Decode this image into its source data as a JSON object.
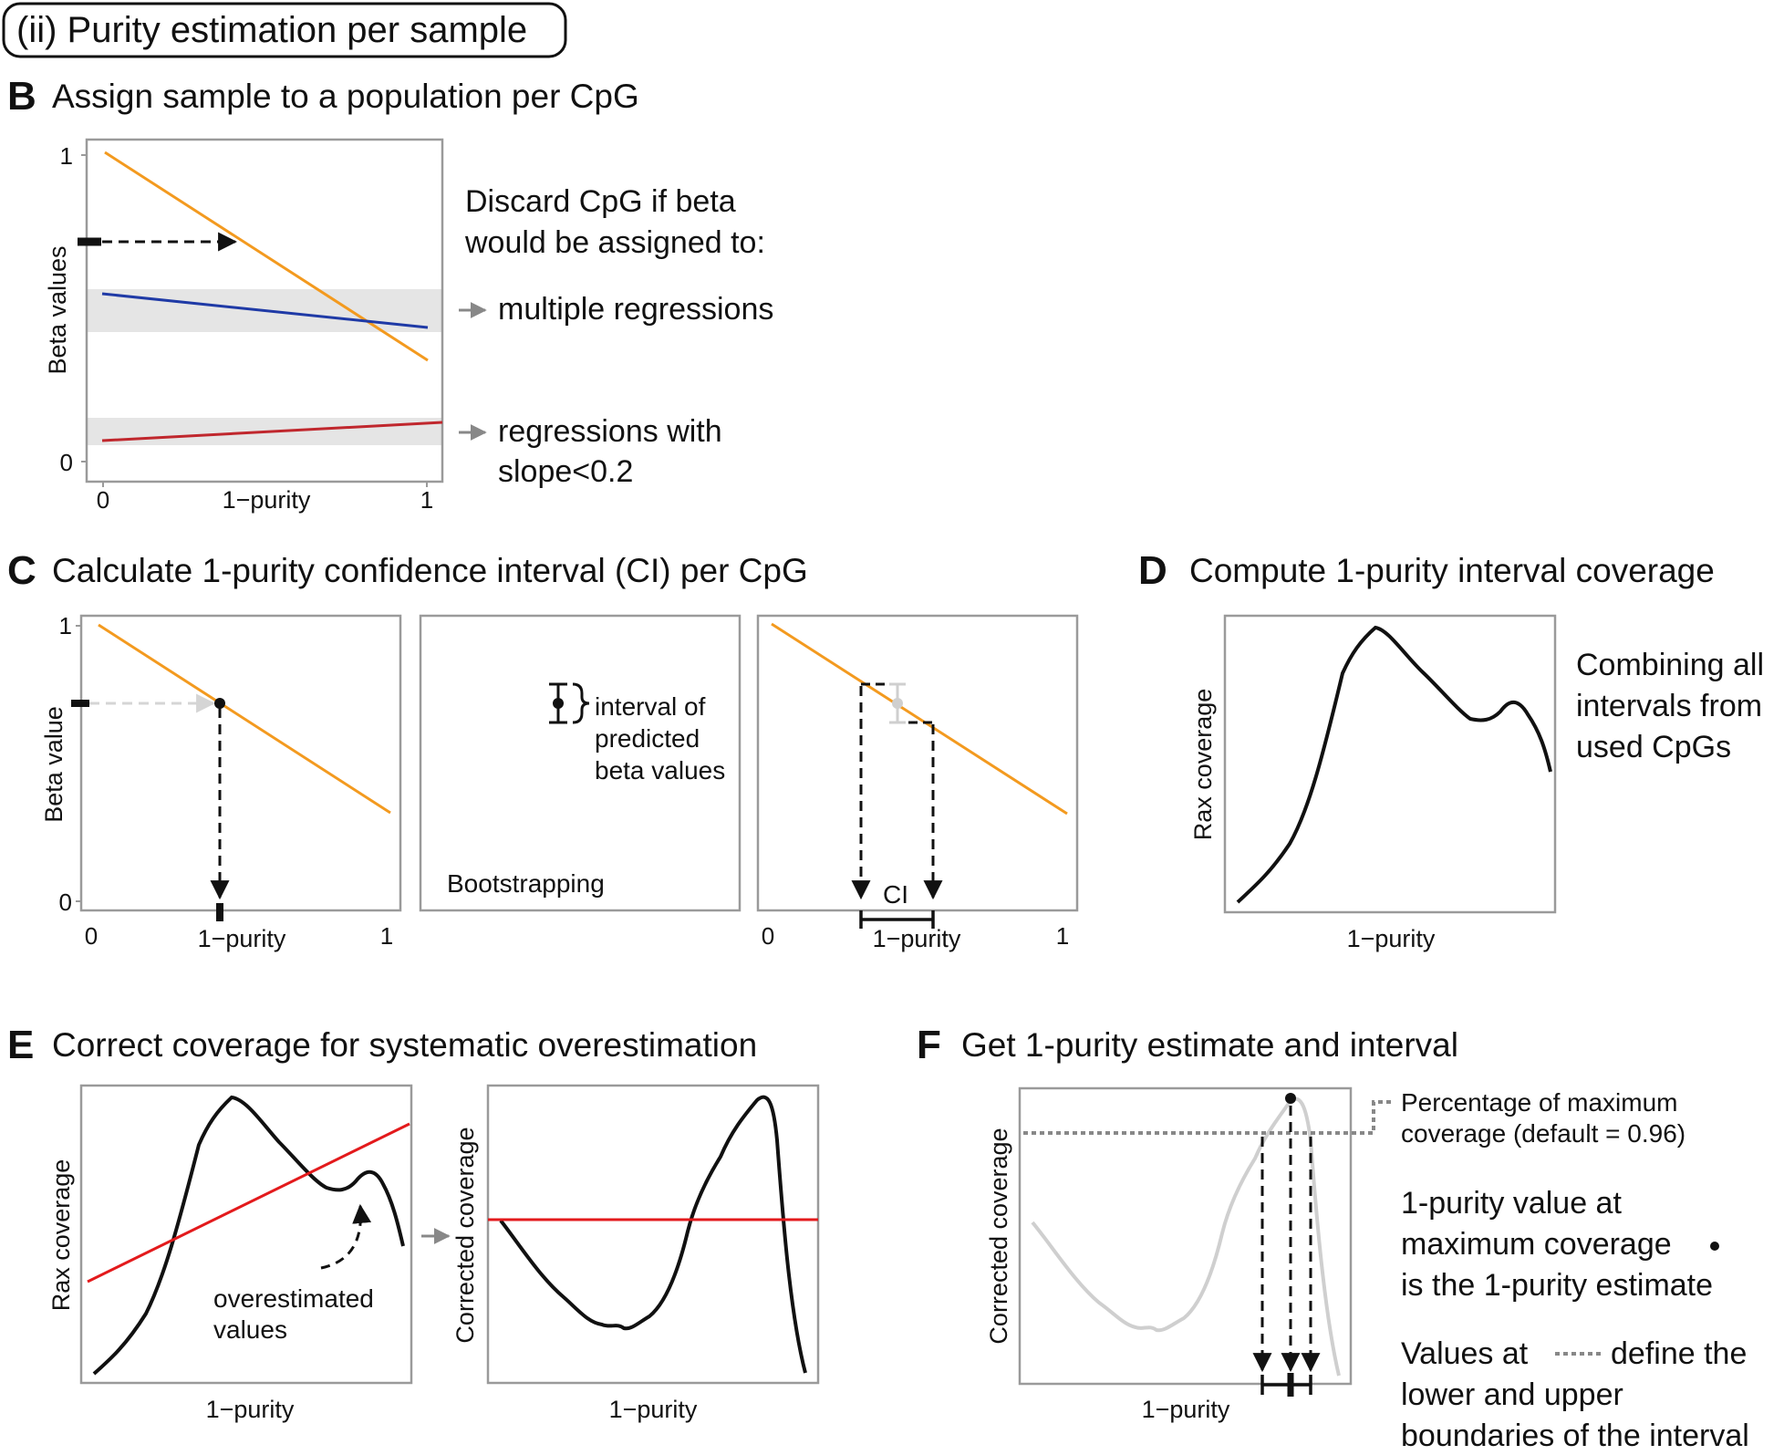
{
  "title_box": "(ii) Purity estimation per sample",
  "panels": {
    "B": {
      "letter": "B",
      "heading": "Assign sample to a population per CpG",
      "y_axis_label": "Beta values",
      "x_axis_label": "1−purity",
      "x_ticks": [
        "0",
        "1"
      ],
      "y_ticks": [
        "1",
        "0"
      ],
      "discard_line1": "Discard CpG if beta",
      "discard_line2": "would be assigned to:",
      "reason1": "multiple regressions",
      "reason2_line1": "regressions with",
      "reason2_line2": "slope<0.2"
    },
    "C": {
      "letter": "C",
      "heading": "Calculate 1-purity confidence interval (CI) per CpG",
      "y_axis_label": "Beta value",
      "x_axis_label": "1−purity",
      "x_ticks": [
        "0",
        "1"
      ],
      "y_ticks": [
        "1",
        "0"
      ],
      "interval_line1": "interval of",
      "interval_line2": "predicted",
      "interval_line3": "beta values",
      "bootstrapping": "Bootstrapping",
      "ci_label": "CI"
    },
    "D": {
      "letter": "D",
      "heading": "Compute 1-purity interval coverage",
      "y_axis_label": "Rax coverage",
      "x_axis_label": "1−purity",
      "note_line1": "Combining all",
      "note_line2": "intervals from",
      "note_line3": "used CpGs"
    },
    "E": {
      "letter": "E",
      "heading": "Correct coverage for systematic overestimation",
      "left_y_axis_label": "Rax coverage",
      "right_y_axis_label": "Corrected coverage",
      "x_axis_label": "1−purity",
      "overest_line1": "overestimated",
      "overest_line2": "values"
    },
    "F": {
      "letter": "F",
      "heading": "Get 1-purity estimate and interval",
      "y_axis_label": "Corrected coverage",
      "x_axis_label": "1−purity",
      "pct_line1": "Percentage of maximum",
      "pct_line2": "coverage (default = 0.96)",
      "est_line1": "1-purity value at",
      "est_line2": "maximum coverage",
      "est_line3": "is the 1-purity estimate",
      "val_line1": "Values at",
      "val_line1b": "define the",
      "val_line2": "lower and upper",
      "val_line3": "boundaries of the interval"
    }
  },
  "colors": {
    "orange": "#f39a1f",
    "blue": "#1f3aa6",
    "darkred": "#c0272d",
    "red": "#e31a1c",
    "band": "#e5e5e5",
    "lightgrey": "#cfcfcf"
  }
}
